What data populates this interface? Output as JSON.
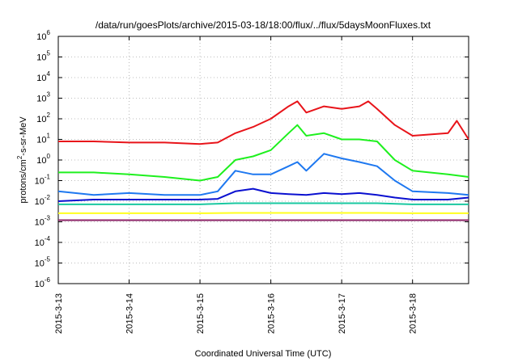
{
  "chart_data": {
    "type": "line",
    "title": "/data/run/goesPlots/archive/2015-03-18/18:00/flux/../flux/5daysMoonFluxes.txt",
    "xlabel": "Coordinated Universal Time (UTC)",
    "ylabel": {
      "prefix": "protons/cm",
      "superscript": "2",
      "suffix": "-s-sr-MeV"
    },
    "y_scale": "log",
    "ylim": [
      1e-06,
      1000000.0
    ],
    "y_ticks": [
      {
        "value": 1e-06,
        "base": "10",
        "exp": "-6"
      },
      {
        "value": 1e-05,
        "base": "10",
        "exp": "-5"
      },
      {
        "value": 0.0001,
        "base": "10",
        "exp": "-4"
      },
      {
        "value": 0.001,
        "base": "10",
        "exp": "-3"
      },
      {
        "value": 0.01,
        "base": "10",
        "exp": "-2"
      },
      {
        "value": 0.1,
        "base": "10",
        "exp": "-1"
      },
      {
        "value": 1,
        "base": "10",
        "exp": "0"
      },
      {
        "value": 10,
        "base": "10",
        "exp": "1"
      },
      {
        "value": 100,
        "base": "10",
        "exp": "2"
      },
      {
        "value": 1000,
        "base": "10",
        "exp": "3"
      },
      {
        "value": 10000,
        "base": "10",
        "exp": "4"
      },
      {
        "value": 100000,
        "base": "10",
        "exp": "5"
      },
      {
        "value": 1000000,
        "base": "10",
        "exp": "6"
      }
    ],
    "xlim": [
      "2015-03-13T00:00",
      "2015-03-18T19:00"
    ],
    "x_ticks": [
      "2015-3-13",
      "2015-3-14",
      "2015-3-15",
      "2015-3-16",
      "2015-3-17",
      "2015-3-18"
    ],
    "grid": true,
    "series": [
      {
        "color": "#e8141a",
        "points": [
          [
            "2015-03-13T00:00",
            8
          ],
          [
            "2015-03-13T12:00",
            8
          ],
          [
            "2015-03-14T00:00",
            7
          ],
          [
            "2015-03-14T12:00",
            7
          ],
          [
            "2015-03-15T00:00",
            6
          ],
          [
            "2015-03-15T06:00",
            7
          ],
          [
            "2015-03-15T12:00",
            20
          ],
          [
            "2015-03-15T18:00",
            40
          ],
          [
            "2015-03-16T00:00",
            100
          ],
          [
            "2015-03-16T06:00",
            400
          ],
          [
            "2015-03-16T09:00",
            700
          ],
          [
            "2015-03-16T12:00",
            200
          ],
          [
            "2015-03-16T18:00",
            400
          ],
          [
            "2015-03-17T00:00",
            300
          ],
          [
            "2015-03-17T06:00",
            400
          ],
          [
            "2015-03-17T09:00",
            700
          ],
          [
            "2015-03-17T12:00",
            300
          ],
          [
            "2015-03-17T18:00",
            50
          ],
          [
            "2015-03-18T00:00",
            15
          ],
          [
            "2015-03-18T12:00",
            20
          ],
          [
            "2015-03-18T15:00",
            80
          ],
          [
            "2015-03-18T19:00",
            10
          ]
        ]
      },
      {
        "color": "#1ef01e",
        "points": [
          [
            "2015-03-13T00:00",
            0.25
          ],
          [
            "2015-03-13T12:00",
            0.25
          ],
          [
            "2015-03-14T00:00",
            0.2
          ],
          [
            "2015-03-14T12:00",
            0.15
          ],
          [
            "2015-03-15T00:00",
            0.1
          ],
          [
            "2015-03-15T06:00",
            0.15
          ],
          [
            "2015-03-15T12:00",
            1
          ],
          [
            "2015-03-15T18:00",
            1.5
          ],
          [
            "2015-03-16T00:00",
            3
          ],
          [
            "2015-03-16T06:00",
            20
          ],
          [
            "2015-03-16T09:00",
            50
          ],
          [
            "2015-03-16T12:00",
            15
          ],
          [
            "2015-03-16T18:00",
            20
          ],
          [
            "2015-03-17T00:00",
            10
          ],
          [
            "2015-03-17T06:00",
            10
          ],
          [
            "2015-03-17T12:00",
            8
          ],
          [
            "2015-03-17T18:00",
            1
          ],
          [
            "2015-03-18T00:00",
            0.3
          ],
          [
            "2015-03-18T12:00",
            0.2
          ],
          [
            "2015-03-18T19:00",
            0.15
          ]
        ]
      },
      {
        "color": "#1e78f0",
        "points": [
          [
            "2015-03-13T00:00",
            0.03
          ],
          [
            "2015-03-13T12:00",
            0.02
          ],
          [
            "2015-03-14T00:00",
            0.025
          ],
          [
            "2015-03-14T12:00",
            0.02
          ],
          [
            "2015-03-15T00:00",
            0.02
          ],
          [
            "2015-03-15T06:00",
            0.03
          ],
          [
            "2015-03-15T12:00",
            0.3
          ],
          [
            "2015-03-15T18:00",
            0.2
          ],
          [
            "2015-03-16T00:00",
            0.2
          ],
          [
            "2015-03-16T06:00",
            0.5
          ],
          [
            "2015-03-16T09:00",
            0.8
          ],
          [
            "2015-03-16T12:00",
            0.3
          ],
          [
            "2015-03-16T18:00",
            2
          ],
          [
            "2015-03-17T00:00",
            1.2
          ],
          [
            "2015-03-17T06:00",
            0.8
          ],
          [
            "2015-03-17T12:00",
            0.5
          ],
          [
            "2015-03-17T18:00",
            0.1
          ],
          [
            "2015-03-18T00:00",
            0.03
          ],
          [
            "2015-03-18T12:00",
            0.025
          ],
          [
            "2015-03-18T19:00",
            0.02
          ]
        ]
      },
      {
        "color": "#0a10d0",
        "points": [
          [
            "2015-03-13T00:00",
            0.01
          ],
          [
            "2015-03-13T12:00",
            0.012
          ],
          [
            "2015-03-14T00:00",
            0.012
          ],
          [
            "2015-03-14T12:00",
            0.012
          ],
          [
            "2015-03-15T00:00",
            0.012
          ],
          [
            "2015-03-15T06:00",
            0.013
          ],
          [
            "2015-03-15T12:00",
            0.03
          ],
          [
            "2015-03-15T18:00",
            0.04
          ],
          [
            "2015-03-16T00:00",
            0.025
          ],
          [
            "2015-03-16T06:00",
            0.022
          ],
          [
            "2015-03-16T12:00",
            0.02
          ],
          [
            "2015-03-16T18:00",
            0.025
          ],
          [
            "2015-03-17T00:00",
            0.022
          ],
          [
            "2015-03-17T06:00",
            0.025
          ],
          [
            "2015-03-17T12:00",
            0.02
          ],
          [
            "2015-03-17T18:00",
            0.015
          ],
          [
            "2015-03-18T00:00",
            0.012
          ],
          [
            "2015-03-18T12:00",
            0.012
          ],
          [
            "2015-03-18T19:00",
            0.015
          ]
        ]
      },
      {
        "color": "#19c8a0",
        "points": [
          [
            "2015-03-13T00:00",
            0.007
          ],
          [
            "2015-03-13T12:00",
            0.007
          ],
          [
            "2015-03-14T00:00",
            0.007
          ],
          [
            "2015-03-14T12:00",
            0.007
          ],
          [
            "2015-03-15T00:00",
            0.007
          ],
          [
            "2015-03-15T12:00",
            0.008
          ],
          [
            "2015-03-16T00:00",
            0.008
          ],
          [
            "2015-03-16T12:00",
            0.008
          ],
          [
            "2015-03-17T00:00",
            0.008
          ],
          [
            "2015-03-17T12:00",
            0.008
          ],
          [
            "2015-03-18T00:00",
            0.007
          ],
          [
            "2015-03-18T12:00",
            0.007
          ],
          [
            "2015-03-18T19:00",
            0.007
          ]
        ]
      },
      {
        "color": "#ffff1e",
        "points": [
          [
            "2015-03-13T00:00",
            0.0026
          ],
          [
            "2015-03-13T12:00",
            0.0026
          ],
          [
            "2015-03-14T00:00",
            0.0026
          ],
          [
            "2015-03-14T12:00",
            0.0026
          ],
          [
            "2015-03-15T00:00",
            0.0026
          ],
          [
            "2015-03-15T12:00",
            0.0027
          ],
          [
            "2015-03-16T00:00",
            0.0027
          ],
          [
            "2015-03-16T12:00",
            0.0027
          ],
          [
            "2015-03-17T00:00",
            0.0027
          ],
          [
            "2015-03-17T12:00",
            0.0027
          ],
          [
            "2015-03-18T00:00",
            0.0026
          ],
          [
            "2015-03-18T12:00",
            0.0026
          ],
          [
            "2015-03-18T19:00",
            0.0026
          ]
        ]
      },
      {
        "color": "#8b2266",
        "points": [
          [
            "2015-03-13T00:00",
            0.0012
          ],
          [
            "2015-03-13T12:00",
            0.0012
          ],
          [
            "2015-03-14T00:00",
            0.0012
          ],
          [
            "2015-03-14T12:00",
            0.0012
          ],
          [
            "2015-03-15T00:00",
            0.0012
          ],
          [
            "2015-03-15T12:00",
            0.0012
          ],
          [
            "2015-03-16T00:00",
            0.0012
          ],
          [
            "2015-03-16T12:00",
            0.0012
          ],
          [
            "2015-03-17T00:00",
            0.0012
          ],
          [
            "2015-03-17T12:00",
            0.0012
          ],
          [
            "2015-03-18T00:00",
            0.0012
          ],
          [
            "2015-03-18T12:00",
            0.0012
          ],
          [
            "2015-03-18T19:00",
            0.0012
          ]
        ]
      }
    ]
  }
}
